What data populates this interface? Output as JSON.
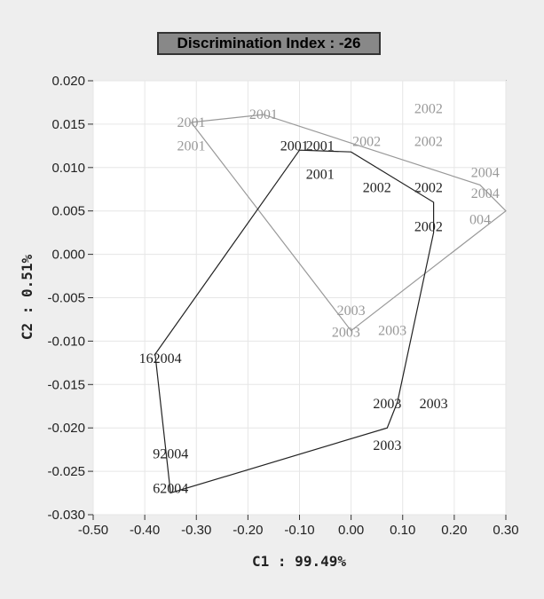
{
  "chart_data": {
    "type": "scatter",
    "title": "Discrimination Index : -26",
    "xlabel": "C1 : 99.49%",
    "ylabel": "C2 : 0.51%",
    "xlim": [
      -0.5,
      0.3
    ],
    "ylim": [
      -0.03,
      0.02
    ],
    "x_ticks": [
      "-0.50",
      "-0.40",
      "-0.30",
      "-0.20",
      "-0.10",
      "0.00",
      "0.10",
      "0.20",
      "0.30"
    ],
    "y_ticks": [
      "0.020",
      "0.015",
      "0.010",
      "0.005",
      "0.000",
      "-0.005",
      "-0.010",
      "-0.015",
      "-0.020",
      "-0.025",
      "-0.030"
    ],
    "grid": true,
    "legend": "none",
    "series": [
      {
        "color": "#999999",
        "points": [
          {
            "x": -0.31,
            "y": 0.0152,
            "label": "2001"
          },
          {
            "x": -0.17,
            "y": 0.0161,
            "label": "2001"
          },
          {
            "x": -0.31,
            "y": 0.0125,
            "label": "2001"
          },
          {
            "x": 0.15,
            "y": 0.0168,
            "label": "2002"
          },
          {
            "x": 0.03,
            "y": 0.013,
            "label": "2002"
          },
          {
            "x": 0.15,
            "y": 0.013,
            "label": "2002"
          },
          {
            "x": 0.26,
            "y": 0.0094,
            "label": "2004"
          },
          {
            "x": 0.26,
            "y": 0.007,
            "label": "2004"
          },
          {
            "x": 0.25,
            "y": 0.004,
            "label": "004"
          },
          {
            "x": 0.0,
            "y": -0.0065,
            "label": "2003"
          },
          {
            "x": -0.01,
            "y": -0.009,
            "label": "2003"
          },
          {
            "x": 0.08,
            "y": -0.0088,
            "label": "2003"
          }
        ],
        "path": [
          {
            "x": -0.31,
            "y": 0.0152
          },
          {
            "x": -0.17,
            "y": 0.0161
          },
          {
            "x": 0.25,
            "y": 0.008
          },
          {
            "x": 0.3,
            "y": 0.005
          },
          {
            "x": 0.0,
            "y": -0.0088
          },
          {
            "x": -0.31,
            "y": 0.0152
          }
        ]
      },
      {
        "color": "#222222",
        "points": [
          {
            "x": -0.11,
            "y": 0.0125,
            "label": "2001"
          },
          {
            "x": -0.06,
            "y": 0.0125,
            "label": "2001"
          },
          {
            "x": -0.06,
            "y": 0.0092,
            "label": "2001"
          },
          {
            "x": 0.05,
            "y": 0.0077,
            "label": "2002"
          },
          {
            "x": 0.15,
            "y": 0.0077,
            "label": "2002"
          },
          {
            "x": 0.15,
            "y": 0.0032,
            "label": "2002"
          },
          {
            "x": 0.07,
            "y": -0.0172,
            "label": "2003"
          },
          {
            "x": 0.16,
            "y": -0.0172,
            "label": "2003"
          },
          {
            "x": 0.07,
            "y": -0.022,
            "label": "2003"
          },
          {
            "x": -0.37,
            "y": -0.012,
            "label": "162004"
          },
          {
            "x": -0.35,
            "y": -0.023,
            "label": "92004"
          },
          {
            "x": -0.35,
            "y": -0.027,
            "label": "62004"
          }
        ],
        "path": [
          {
            "x": -0.1,
            "y": 0.012
          },
          {
            "x": 0.0,
            "y": 0.0118
          },
          {
            "x": 0.16,
            "y": 0.006
          },
          {
            "x": 0.16,
            "y": 0.0025
          },
          {
            "x": 0.09,
            "y": -0.017
          },
          {
            "x": 0.07,
            "y": -0.02
          },
          {
            "x": -0.35,
            "y": -0.0275
          },
          {
            "x": -0.38,
            "y": -0.0115
          },
          {
            "x": -0.1,
            "y": 0.012
          }
        ]
      }
    ]
  }
}
